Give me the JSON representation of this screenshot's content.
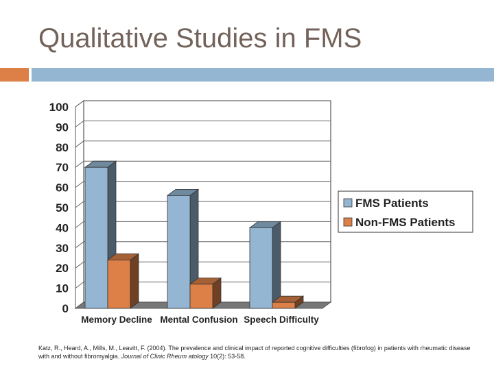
{
  "slide": {
    "title": "Qualitative Studies in FMS",
    "colors": {
      "title": "#73625a",
      "accent_left": "#dd8047",
      "accent_right": "#94b6d2"
    }
  },
  "chart_data": {
    "type": "bar",
    "categories": [
      "Memory Decline",
      "Mental Confusion",
      "Speech Difficulty"
    ],
    "series": [
      {
        "name": "FMS Patients",
        "values": [
          70,
          56,
          40
        ],
        "color": "#94b6d2"
      },
      {
        "name": "Non-FMS Patients",
        "values": [
          24,
          12,
          3
        ],
        "color": "#dd8047"
      }
    ],
    "ylim": [
      0,
      100
    ],
    "yticks": [
      "0",
      "10",
      "20",
      "30",
      "40",
      "50",
      "60",
      "70",
      "80",
      "90",
      "100"
    ],
    "grid": true,
    "legend": "right",
    "style": "3d"
  },
  "citation": {
    "pre": "Katz, R., Heard, A., Mills, M., Leavitt, F. (2004). The prevalence and clinical impact of reported cognitive difficulties (fibrofog) in patients with rheumatic disease with and without fibromyalgia.",
    "journal": "Journal of Clinic Rheum atology",
    "post": "10(2): 53-58."
  }
}
